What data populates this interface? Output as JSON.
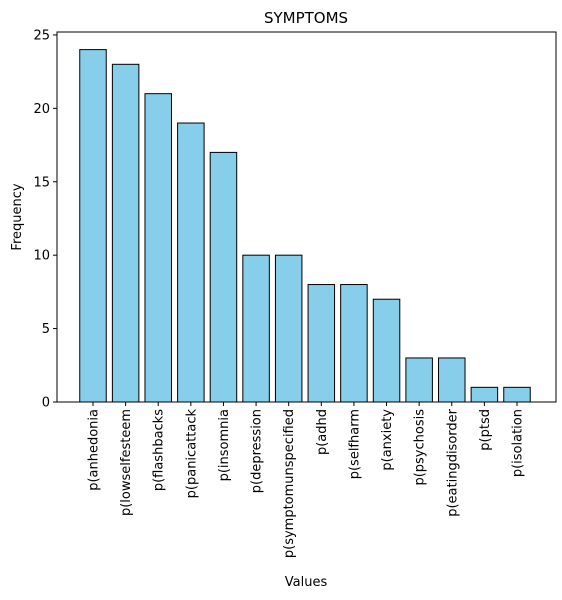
{
  "chart_data": {
    "type": "bar",
    "title": "SYMPTOMS",
    "xlabel": "Values",
    "ylabel": "Frequency",
    "categories": [
      "p(anhedonia",
      "p(lowselfesteem",
      "p(flashbacks",
      "p(panicattack",
      "p(insomnia",
      "p(depression",
      "p(symptomunspecified",
      "p(adhd",
      "p(selfharm",
      "p(anxiety",
      "p(psychosis",
      "p(eatingdisorder",
      "p(ptsd",
      "p(isolation"
    ],
    "values": [
      24,
      23,
      21,
      19,
      17,
      10,
      10,
      8,
      8,
      7,
      3,
      3,
      1,
      1
    ],
    "ylim": [
      0,
      25.2
    ],
    "yticks": [
      0,
      5,
      10,
      15,
      20,
      25
    ],
    "grid": false,
    "bar_color": "#87ceeb",
    "edge_color": "#000000"
  }
}
